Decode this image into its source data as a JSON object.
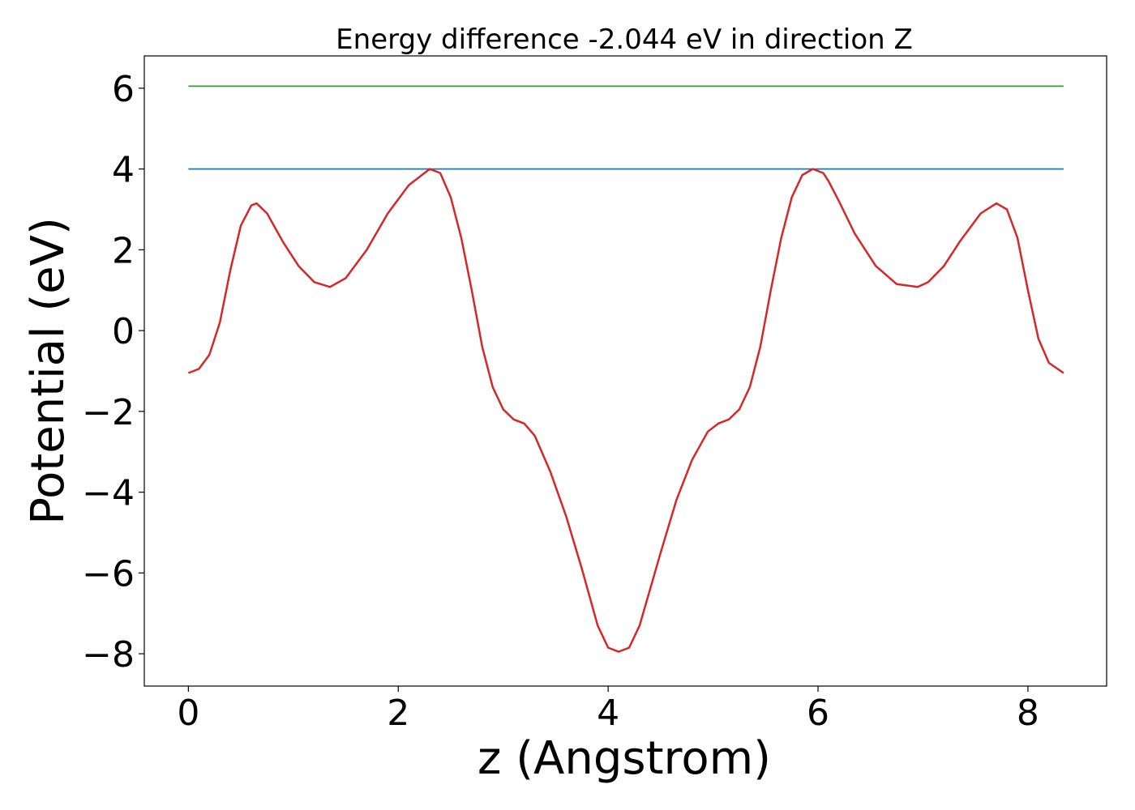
{
  "chart_data": {
    "type": "line",
    "title": "Energy difference -2.044 eV in direction Z",
    "xlabel": "z (Angstrom)",
    "ylabel": "Potential (eV)",
    "xlim": [
      -0.42,
      8.75
    ],
    "ylim": [
      -8.8,
      6.8
    ],
    "xticks": [
      0,
      2,
      4,
      6,
      8
    ],
    "yticks": [
      6,
      4,
      2,
      0,
      -2,
      -4,
      -6,
      -8
    ],
    "xtick_labels": [
      "0",
      "2",
      "4",
      "6",
      "8"
    ],
    "ytick_labels": [
      "6",
      "4",
      "2",
      "0",
      "−2",
      "−4",
      "−6",
      "−8"
    ],
    "grid": false,
    "legend": "none",
    "series": [
      {
        "color": "#2ca02c",
        "x": [
          0,
          8.34
        ],
        "y": [
          6.05,
          6.05
        ]
      },
      {
        "color": "#1f77b4",
        "x": [
          0,
          8.34
        ],
        "y": [
          4.0,
          4.0
        ]
      },
      {
        "color": "#d62728",
        "x": [
          0,
          0.1,
          0.2,
          0.3,
          0.4,
          0.5,
          0.6,
          0.65,
          0.75,
          0.9,
          1.05,
          1.2,
          1.35,
          1.5,
          1.7,
          1.9,
          2.1,
          2.3,
          2.4,
          2.5,
          2.6,
          2.7,
          2.8,
          2.9,
          3.0,
          3.1,
          3.2,
          3.3,
          3.45,
          3.6,
          3.75,
          3.9,
          4.0,
          4.1,
          4.2,
          4.3,
          4.4,
          4.5,
          4.65,
          4.8,
          4.95,
          5.05,
          5.15,
          5.25,
          5.35,
          5.45,
          5.55,
          5.65,
          5.75,
          5.85,
          5.95,
          6.05,
          6.1,
          6.2,
          6.35,
          6.55,
          6.75,
          6.95,
          7.05,
          7.2,
          7.35,
          7.55,
          7.7,
          7.8,
          7.9,
          8.0,
          8.1,
          8.2,
          8.34
        ],
        "y": [
          -1.05,
          -0.95,
          -0.6,
          0.2,
          1.5,
          2.6,
          3.1,
          3.15,
          2.9,
          2.2,
          1.6,
          1.2,
          1.08,
          1.3,
          2.0,
          2.9,
          3.6,
          4.0,
          3.9,
          3.3,
          2.3,
          1.0,
          -0.4,
          -1.4,
          -1.95,
          -2.2,
          -2.3,
          -2.6,
          -3.5,
          -4.6,
          -5.9,
          -7.3,
          -7.85,
          -7.95,
          -7.85,
          -7.3,
          -6.4,
          -5.5,
          -4.2,
          -3.2,
          -2.5,
          -2.3,
          -2.2,
          -1.95,
          -1.4,
          -0.4,
          1.0,
          2.3,
          3.3,
          3.85,
          4.0,
          3.9,
          3.7,
          3.2,
          2.4,
          1.6,
          1.15,
          1.08,
          1.2,
          1.6,
          2.2,
          2.9,
          3.15,
          3.0,
          2.3,
          1.0,
          -0.2,
          -0.8,
          -1.05
        ]
      }
    ]
  }
}
